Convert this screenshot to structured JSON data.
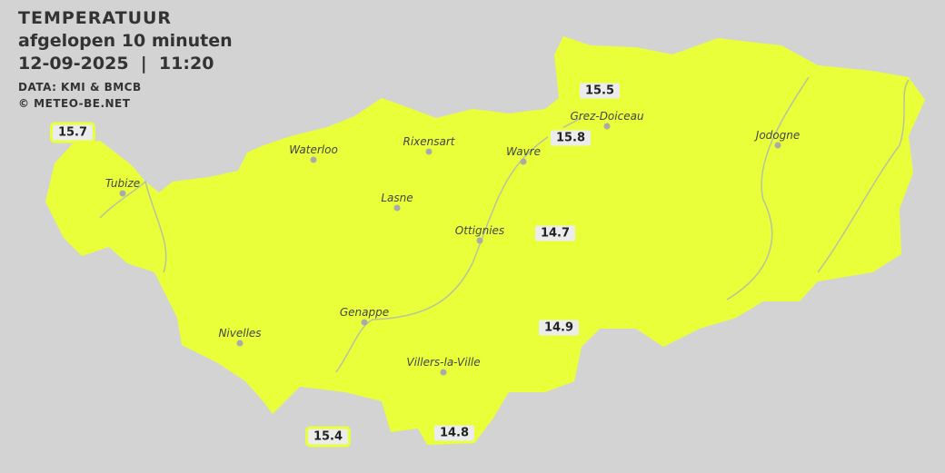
{
  "header": {
    "title": "TEMPERATUUR",
    "subtitle": "afgelopen 10 minuten",
    "datetime": "12-09-2025  |  11:20",
    "source": "DATA: KMI & BMCB",
    "copyright": "© METEO-BE.NET"
  },
  "colors": {
    "region_fill": "#e8ff3a",
    "background": "#d3d3d3",
    "river": "#b8c2a0",
    "badge_border": "#e8ff3a"
  },
  "cities": [
    {
      "name": "Waterloo"
    },
    {
      "name": "Rixensart"
    },
    {
      "name": "Wavre"
    },
    {
      "name": "Grez-Doiceau"
    },
    {
      "name": "Jodogne"
    },
    {
      "name": "Tubize"
    },
    {
      "name": "Lasne"
    },
    {
      "name": "Ottignies"
    },
    {
      "name": "Genappe"
    },
    {
      "name": "Nivelles"
    },
    {
      "name": "Villers-la-Ville"
    }
  ],
  "temperatures": [
    "15.7",
    "15.5",
    "15.8",
    "14.7",
    "14.9",
    "15.4",
    "14.8"
  ]
}
